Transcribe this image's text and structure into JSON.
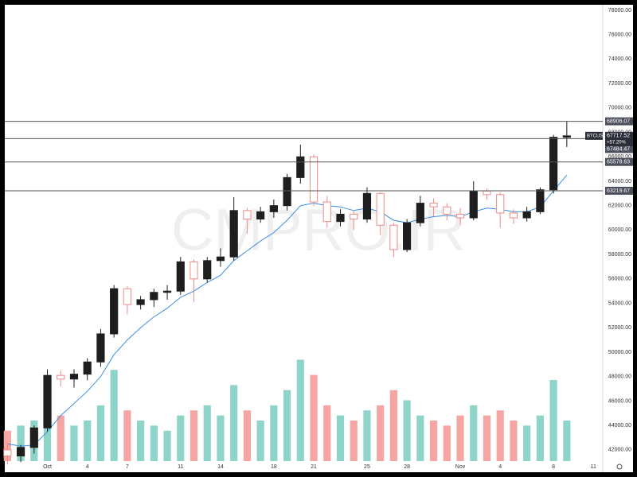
{
  "chart_data": {
    "type": "candlestick",
    "watermark": "CMPRO.IR",
    "symbol": "BTCUSD",
    "change_label": "+57.20%",
    "x": [
      -2,
      -1,
      0,
      1,
      2,
      3,
      4,
      5,
      6,
      7,
      8,
      9,
      10,
      11,
      12,
      13,
      14,
      15,
      16,
      17,
      18,
      19,
      20,
      21,
      22,
      23,
      24,
      25,
      26,
      27,
      28,
      29,
      30,
      31,
      32,
      33,
      34,
      35,
      36,
      37,
      38,
      39,
      40
    ],
    "open": [
      42000,
      41500,
      42200,
      43800,
      48100,
      47800,
      48200,
      49200,
      51500,
      55200,
      53900,
      54300,
      54900,
      55000,
      57400,
      56000,
      57500,
      57800,
      61600,
      60900,
      61500,
      62000,
      64300,
      66000,
      62300,
      60700,
      61300,
      60900,
      63000,
      60400,
      58400,
      60600,
      62200,
      61900,
      61300,
      61000,
      63200,
      62900,
      61400,
      61000,
      61500,
      63300,
      67600
    ],
    "high": [
      42600,
      42400,
      44000,
      48600,
      48500,
      48600,
      49500,
      51900,
      55500,
      55400,
      54600,
      55200,
      55500,
      57800,
      57600,
      57800,
      58500,
      62700,
      61800,
      61900,
      62500,
      64600,
      67000,
      66200,
      62800,
      61700,
      61600,
      63500,
      63100,
      60600,
      60900,
      62800,
      62600,
      62200,
      61800,
      64000,
      63400,
      63100,
      61700,
      61900,
      63500,
      67800,
      68906.07
    ],
    "low": [
      40800,
      41000,
      41700,
      43500,
      47200,
      47100,
      47700,
      48800,
      51200,
      53100,
      53500,
      53700,
      54300,
      54700,
      54100,
      55700,
      57000,
      57500,
      59700,
      60600,
      61000,
      61600,
      63800,
      62000,
      60200,
      60300,
      60000,
      60600,
      59600,
      57800,
      58200,
      60300,
      61100,
      60800,
      60400,
      60800,
      62500,
      60200,
      60500,
      60700,
      61300,
      63000,
      66800
    ],
    "close": [
      41500,
      42200,
      43800,
      48100,
      47800,
      48200,
      49200,
      51500,
      55200,
      53900,
      54300,
      54900,
      55000,
      57400,
      56000,
      57500,
      57800,
      61600,
      60900,
      61500,
      62000,
      64300,
      66000,
      62300,
      60700,
      61300,
      60900,
      63000,
      60400,
      58400,
      60600,
      62200,
      61900,
      61300,
      61000,
      63200,
      62900,
      61400,
      61000,
      61500,
      63300,
      67600,
      67717.52
    ],
    "volume": [
      30,
      35,
      40,
      60,
      45,
      35,
      40,
      55,
      90,
      50,
      40,
      35,
      30,
      45,
      50,
      55,
      45,
      75,
      50,
      40,
      55,
      70,
      100,
      85,
      55,
      45,
      40,
      50,
      55,
      70,
      60,
      45,
      40,
      35,
      45,
      55,
      45,
      50,
      40,
      35,
      45,
      80,
      40
    ],
    "ma": [
      42500,
      42300,
      42400,
      43500,
      44800,
      45800,
      46800,
      48000,
      49800,
      51000,
      52000,
      52900,
      53600,
      54500,
      55000,
      55700,
      56300,
      57500,
      58300,
      59100,
      59800,
      60800,
      62000,
      62200,
      62000,
      61900,
      61600,
      61800,
      61500,
      60800,
      60600,
      60900,
      61100,
      61200,
      61100,
      61500,
      61800,
      61700,
      61500,
      61500,
      61900,
      63200,
      64500
    ],
    "up_color": "#1e1e1e",
    "down_color": "#ef8a88",
    "volume_up_color": "#8fd4c9",
    "volume_down_color": "#f5a6a2",
    "ma_color": "#3a8ee6",
    "ylim": [
      40300,
      78450
    ],
    "yticks": [
      {
        "value": 42000,
        "label": "42000.00"
      },
      {
        "value": 44000,
        "label": "44000.00"
      },
      {
        "value": 46000,
        "label": "46000.00"
      },
      {
        "value": 48000,
        "label": "48000.00"
      },
      {
        "value": 50000,
        "label": "50000.00"
      },
      {
        "value": 52000,
        "label": "52000.00"
      },
      {
        "value": 54000,
        "label": "54000.00"
      },
      {
        "value": 56000,
        "label": "56000.00"
      },
      {
        "value": 58000,
        "label": "58000.00"
      },
      {
        "value": 60000,
        "label": "60000.00"
      },
      {
        "value": 62000,
        "label": "62000.00"
      },
      {
        "value": 64000,
        "label": "64000.00"
      },
      {
        "value": 66000,
        "label": "66000.00"
      },
      {
        "value": 68000,
        "label": "68000.00"
      },
      {
        "value": 70000,
        "label": "70000.00"
      },
      {
        "value": 72000,
        "label": "72000.00"
      },
      {
        "value": 74000,
        "label": "74000.00"
      },
      {
        "value": 76000,
        "label": "76000.00"
      },
      {
        "value": 78000,
        "label": "78000.00"
      }
    ],
    "xlim": [
      -2.2,
      42.7
    ],
    "xticks": [
      {
        "value": 1,
        "label": "Oct"
      },
      4,
      7,
      11,
      14,
      18,
      21,
      25,
      28,
      {
        "value": 32,
        "label": "Nov"
      },
      {
        "value": 35,
        "label": "4"
      },
      {
        "value": 39,
        "label": "8"
      },
      {
        "value": 42,
        "label": "11"
      }
    ],
    "y2lim": [
      0,
      450
    ],
    "price_lines": [
      68906.07,
      67484.47,
      65578.63,
      63219.67
    ]
  }
}
